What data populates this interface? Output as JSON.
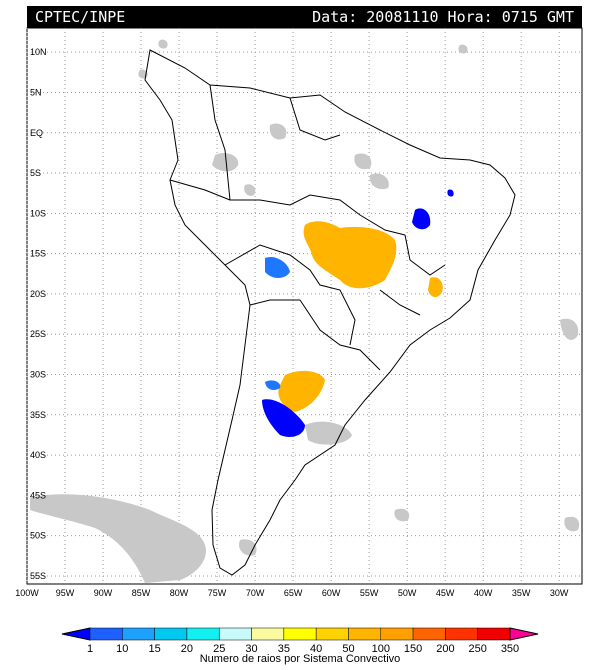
{
  "header": {
    "source": "CPTEC/INPE",
    "datetime": "Data: 20081110 Hora: 0715 GMT"
  },
  "map": {
    "lat_labels": [
      "10N",
      "5N",
      "EQ",
      "5S",
      "10S",
      "15S",
      "20S",
      "25S",
      "30S",
      "35S",
      "40S",
      "45S",
      "50S",
      "55S"
    ],
    "lon_labels": [
      "100W",
      "95W",
      "90W",
      "85W",
      "80W",
      "75W",
      "70W",
      "65W",
      "60W",
      "55W",
      "50W",
      "45W",
      "40W",
      "35W",
      "30W"
    ],
    "extent": {
      "lon_min": -100,
      "lon_max": -27,
      "lat_min": -56,
      "lat_max": 13
    },
    "grid": true
  },
  "colorbar": {
    "title": "Numero de raios por Sistema Convectivo",
    "ticks": [
      "1",
      "10",
      "15",
      "20",
      "25",
      "30",
      "35",
      "40",
      "50",
      "100",
      "150",
      "200",
      "250",
      "350"
    ],
    "colors": [
      "#0000ff",
      "#1e60ff",
      "#1ea0ff",
      "#00c8f0",
      "#14f0f0",
      "#c8fafa",
      "#fafaa0",
      "#ffff00",
      "#ffd200",
      "#ffb400",
      "#ffa000",
      "#ff6400",
      "#ff3200",
      "#f00000",
      "#ff0096"
    ]
  },
  "legend_values": {
    "gray": "#c8c8c8",
    "orange": "#ffb400",
    "blue_dark": "#0000ff",
    "blue_mid": "#1e78ff"
  }
}
